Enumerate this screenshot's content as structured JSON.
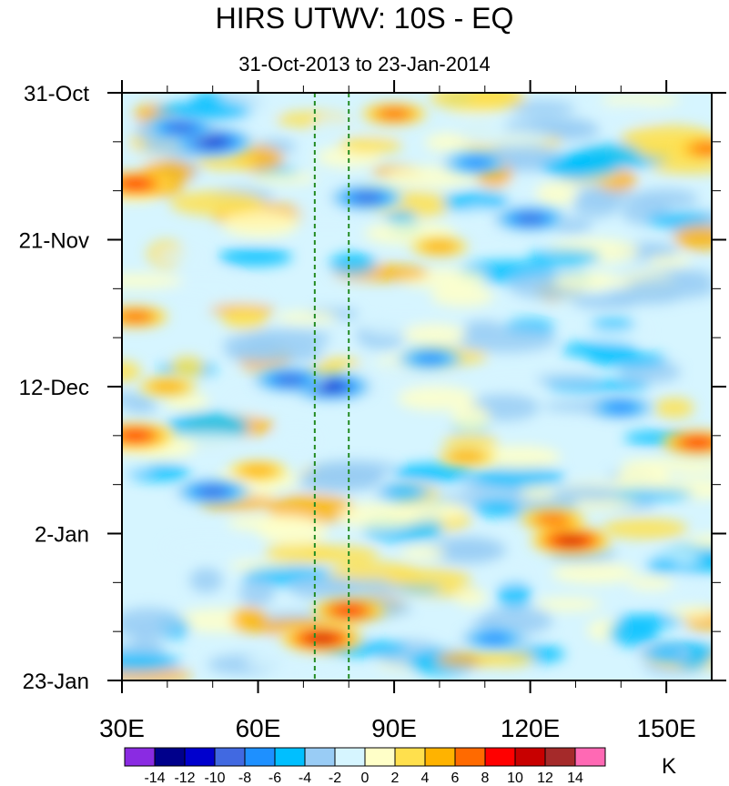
{
  "chart_data": {
    "type": "heatmap",
    "title": "HIRS UTWV: 10S - EQ",
    "subtitle": "31-Oct-2013 to 23-Jan-2014",
    "x_axis": {
      "range": [
        30,
        160
      ],
      "ticks": [
        30,
        60,
        90,
        120,
        150
      ],
      "tick_labels": [
        "30E",
        "60E",
        "90E",
        "120E",
        "150E"
      ]
    },
    "y_axis": {
      "range_days": [
        0,
        84
      ],
      "ticks_days": [
        0,
        21,
        42,
        63,
        84
      ],
      "tick_labels": [
        "31-Oct",
        "21-Nov",
        "12-Dec",
        "2-Jan",
        "23-Jan"
      ],
      "direction": "top-to-bottom"
    },
    "reference_lines": [
      {
        "x": 72.5,
        "style": "dashed",
        "color": "#228b22"
      },
      {
        "x": 80,
        "style": "dashed",
        "color": "#228b22"
      }
    ],
    "colorbar": {
      "unit": "K",
      "levels": [
        -14,
        -12,
        -10,
        -8,
        -6,
        -4,
        -2,
        0,
        2,
        4,
        6,
        8,
        10,
        12,
        14
      ],
      "labels": [
        "-14",
        "-12",
        "-10",
        "-8",
        "-6",
        "-4",
        "-2",
        "0",
        "2",
        "4",
        "6",
        "8",
        "10",
        "12",
        "14"
      ],
      "colors": [
        "#8a2be2",
        "#00008b",
        "#0000cd",
        "#4169e1",
        "#1e90ff",
        "#00bfff",
        "#99ccf5",
        "#d6f5ff",
        "#ffffc8",
        "#ffe04d",
        "#ffb300",
        "#ff6a00",
        "#ff0000",
        "#c80000",
        "#a52a2a",
        "#ff69b4"
      ]
    },
    "features": [
      {
        "lon": 50,
        "day": 7,
        "value": -10
      },
      {
        "lon": 43,
        "day": 5,
        "value": -8
      },
      {
        "lon": 33,
        "day": 13,
        "value": 8
      },
      {
        "lon": 33,
        "day": 49,
        "value": 8
      },
      {
        "lon": 33,
        "day": 32,
        "value": 6
      },
      {
        "lon": 76,
        "day": 42,
        "value": -10
      },
      {
        "lon": 67,
        "day": 41,
        "value": -8
      },
      {
        "lon": 50,
        "day": 57,
        "value": -8
      },
      {
        "lon": 84,
        "day": 15,
        "value": -8
      },
      {
        "lon": 74,
        "day": 78,
        "value": 10
      },
      {
        "lon": 80,
        "day": 74,
        "value": 8
      },
      {
        "lon": 129,
        "day": 64,
        "value": 10
      },
      {
        "lon": 125,
        "day": 61,
        "value": 6
      },
      {
        "lon": 157,
        "day": 50,
        "value": 8
      },
      {
        "lon": 159,
        "day": 8,
        "value": 6
      },
      {
        "lon": 120,
        "day": 18,
        "value": -8
      },
      {
        "lon": 98,
        "day": 38,
        "value": -6
      },
      {
        "lon": 112,
        "day": 78,
        "value": -6
      },
      {
        "lon": 92,
        "day": 57,
        "value": -4
      },
      {
        "lon": 90,
        "day": 3,
        "value": 6
      },
      {
        "lon": 100,
        "day": 22,
        "value": 4
      },
      {
        "lon": 40,
        "day": 42,
        "value": 4
      },
      {
        "lon": 106,
        "day": 52,
        "value": 4
      },
      {
        "lon": 60,
        "day": 54,
        "value": 4
      },
      {
        "lon": 140,
        "day": 45,
        "value": -6
      },
      {
        "lon": 150,
        "day": 80,
        "value": -4
      },
      {
        "lon": 108,
        "day": 10,
        "value": -6
      }
    ]
  }
}
